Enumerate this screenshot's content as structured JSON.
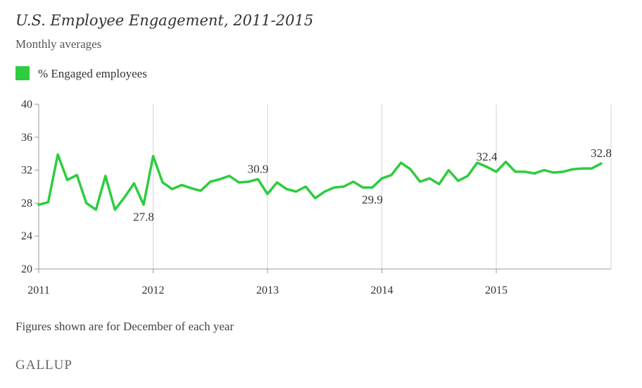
{
  "chart_data": {
    "type": "line",
    "title": "U.S. Employee Engagement, 2011-2015",
    "subtitle": "Monthly averages",
    "ylim": [
      20,
      40
    ],
    "yticks": [
      20,
      24,
      28,
      32,
      36,
      40
    ],
    "xticks": [
      "2011",
      "2012",
      "2013",
      "2014",
      "2015"
    ],
    "grid": "vertical lines at each year",
    "footnote": "Figures shown are for December of each year",
    "source": "GALLUP",
    "series": [
      {
        "name": "% Engaged employees",
        "color": "#2ecc40",
        "values": [
          27.8,
          28.1,
          33.9,
          30.8,
          31.4,
          28.0,
          27.2,
          31.3,
          27.2,
          28.7,
          30.4,
          27.8,
          33.7,
          30.5,
          29.7,
          30.2,
          29.8,
          29.5,
          30.6,
          30.9,
          31.3,
          30.5,
          30.6,
          30.9,
          29.1,
          30.5,
          29.7,
          29.4,
          30.0,
          28.6,
          29.4,
          29.9,
          30.0,
          30.6,
          29.9,
          29.9,
          31.0,
          31.4,
          32.9,
          32.1,
          30.6,
          31.0,
          30.3,
          32.0,
          30.7,
          31.3,
          32.9,
          32.4,
          31.8,
          33.0,
          31.8,
          31.8,
          31.6,
          32.0,
          31.7,
          31.8,
          32.1,
          32.2,
          32.2,
          32.8
        ]
      }
    ],
    "annotations": [
      {
        "index": 11,
        "label": "27.8",
        "placement": "below"
      },
      {
        "index": 23,
        "label": "30.9",
        "placement": "above"
      },
      {
        "index": 35,
        "label": "29.9",
        "placement": "below"
      },
      {
        "index": 47,
        "label": "32.4",
        "placement": "above"
      },
      {
        "index": 59,
        "label": "32.8",
        "placement": "above"
      }
    ]
  }
}
